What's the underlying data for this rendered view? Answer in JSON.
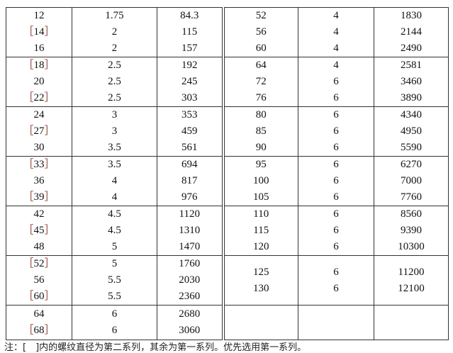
{
  "bracket_open": "［",
  "bracket_close": "］",
  "left_groups": [
    [
      {
        "d": "12",
        "p": "1.75",
        "a": "84.3"
      },
      {
        "d": "14",
        "second": true,
        "p": "2",
        "a": "115"
      },
      {
        "d": "16",
        "p": "2",
        "a": "157"
      }
    ],
    [
      {
        "d": "18",
        "second": true,
        "p": "2.5",
        "a": "192"
      },
      {
        "d": "20",
        "p": "2.5",
        "a": "245"
      },
      {
        "d": "22",
        "second": true,
        "p": "2.5",
        "a": "303"
      }
    ],
    [
      {
        "d": "24",
        "p": "3",
        "a": "353"
      },
      {
        "d": "27",
        "second": true,
        "p": "3",
        "a": "459"
      },
      {
        "d": "30",
        "p": "3.5",
        "a": "561"
      }
    ],
    [
      {
        "d": "33",
        "second": true,
        "p": "3.5",
        "a": "694"
      },
      {
        "d": "36",
        "p": "4",
        "a": "817"
      },
      {
        "d": "39",
        "second": true,
        "p": "4",
        "a": "976"
      }
    ],
    [
      {
        "d": "42",
        "p": "4.5",
        "a": "1120"
      },
      {
        "d": "45",
        "second": true,
        "p": "4.5",
        "a": "1310"
      },
      {
        "d": "48",
        "p": "5",
        "a": "1470"
      }
    ],
    [
      {
        "d": "52",
        "second": true,
        "p": "5",
        "a": "1760"
      },
      {
        "d": "56",
        "p": "5.5",
        "a": "2030"
      },
      {
        "d": "60",
        "second": true,
        "p": "5.5",
        "a": "2360"
      }
    ],
    [
      {
        "d": "64",
        "p": "6",
        "a": "2680"
      },
      {
        "d": "68",
        "second": true,
        "p": "6",
        "a": "3060"
      }
    ]
  ],
  "right_groups": [
    [
      {
        "d": "52",
        "p": "4",
        "a": "1830"
      },
      {
        "d": "56",
        "p": "4",
        "a": "2144"
      },
      {
        "d": "60",
        "p": "4",
        "a": "2490"
      }
    ],
    [
      {
        "d": "64",
        "p": "4",
        "a": "2581"
      },
      {
        "d": "72",
        "p": "6",
        "a": "3460"
      },
      {
        "d": "76",
        "p": "6",
        "a": "3890"
      }
    ],
    [
      {
        "d": "80",
        "p": "6",
        "a": "4340"
      },
      {
        "d": "85",
        "p": "6",
        "a": "4950"
      },
      {
        "d": "90",
        "p": "6",
        "a": "5590"
      }
    ],
    [
      {
        "d": "95",
        "p": "6",
        "a": "6270"
      },
      {
        "d": "100",
        "p": "6",
        "a": "7000"
      },
      {
        "d": "105",
        "p": "6",
        "a": "7760"
      }
    ],
    [
      {
        "d": "110",
        "p": "6",
        "a": "8560"
      },
      {
        "d": "115",
        "p": "6",
        "a": "9390"
      },
      {
        "d": "120",
        "p": "6",
        "a": "10300"
      }
    ],
    [
      {
        "d": "125",
        "p": "6",
        "a": "11200"
      },
      {
        "d": "130",
        "p": "6",
        "a": "12100"
      }
    ],
    []
  ],
  "note": "注：[　]内的螺纹直径为第二系列，其余为第一系列。优先选用第一系列。"
}
